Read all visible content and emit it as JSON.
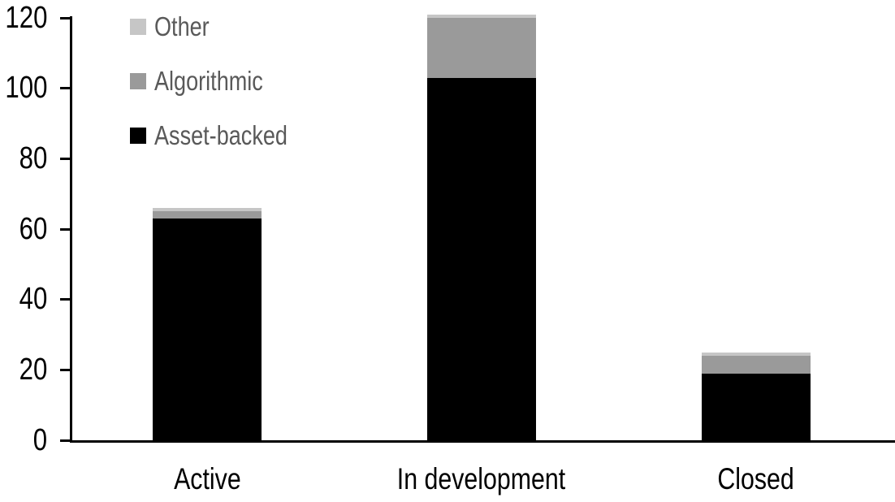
{
  "chart_data": {
    "type": "bar",
    "stacked": true,
    "title": "",
    "xlabel": "",
    "ylabel": "",
    "categories": [
      "Active",
      "In development",
      "Closed"
    ],
    "series": [
      {
        "name": "Asset-backed",
        "color": "#000000",
        "values": [
          63,
          103,
          19
        ]
      },
      {
        "name": "Algorithmic",
        "color": "#9a9a9a",
        "values": [
          2,
          17,
          5
        ]
      },
      {
        "name": "Other",
        "color": "#c6c6c6",
        "values": [
          1,
          1,
          1
        ]
      }
    ],
    "totals": [
      66,
      121,
      25
    ],
    "y_ticks": [
      0,
      20,
      40,
      60,
      80,
      100,
      120
    ],
    "ylim": [
      0,
      120
    ],
    "grid": false,
    "legend_position": "top-left",
    "legend_order": [
      "Other",
      "Algorithmic",
      "Asset-backed"
    ]
  },
  "legend": {
    "items": [
      {
        "label": "Other",
        "color": "#c6c6c6"
      },
      {
        "label": "Algorithmic",
        "color": "#9a9a9a"
      },
      {
        "label": "Asset-backed",
        "color": "#000000"
      }
    ]
  },
  "colors": {
    "background": "#ffffff",
    "axis_line": "#000000",
    "axis_text": "#000000",
    "legend_text": "#595959"
  }
}
